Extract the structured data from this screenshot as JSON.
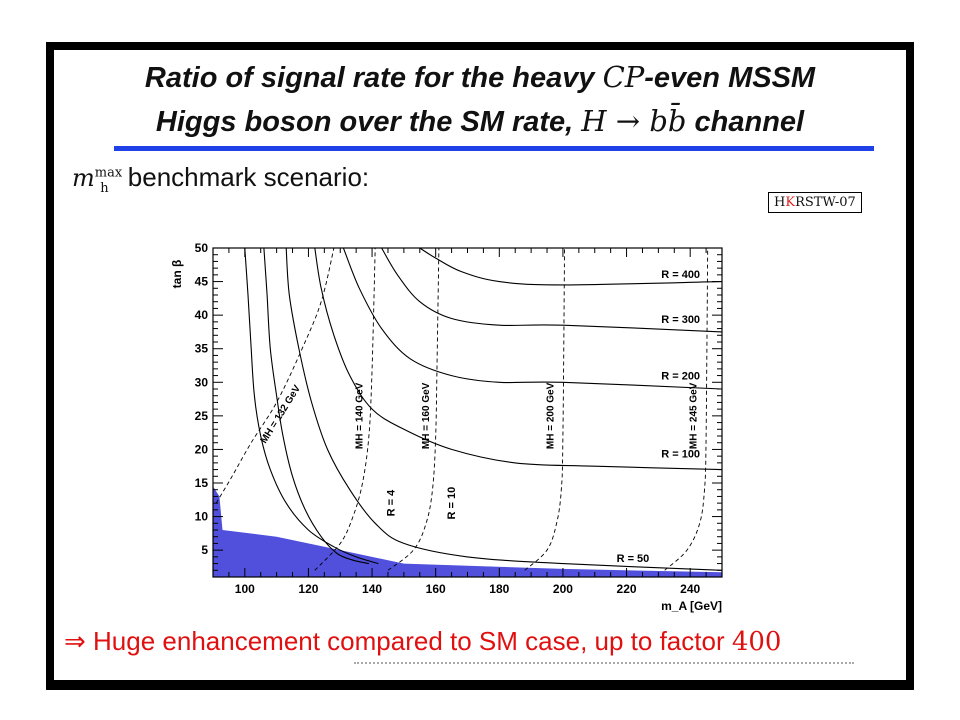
{
  "slide": {
    "title_line1_pre": "Ratio of signal rate for the heavy ",
    "title_cp": "CP",
    "title_line1_post": "-even MSSM",
    "title_line2_pre": "Higgs boson over the SM rate, ",
    "title_math": "H → bb̄",
    "title_line2_post": " channel",
    "subtitle_m": "m",
    "subtitle_sup": "max",
    "subtitle_sub": "h",
    "subtitle_text": " benchmark scenario:",
    "badge_pre": "H",
    "badge_k": "K",
    "badge_post": "RSTW-07",
    "conclusion_arrow": "⇒",
    "conclusion_text": " Huge enhancement compared to SM case, up to factor ",
    "conclusion_num": "400"
  },
  "colors": {
    "title_rule": "#2040e8",
    "excluded_region": "#5050dd",
    "conclusion": "#e01010",
    "badge_k": "#e02020"
  },
  "chart_data": {
    "type": "line",
    "xlabel": "m_A [GeV]",
    "ylabel": "tan β",
    "xlim": [
      90,
      250
    ],
    "ylim": [
      1,
      50
    ],
    "x_ticks": [
      100,
      120,
      140,
      160,
      180,
      200,
      220,
      240
    ],
    "y_ticks": [
      5,
      10,
      15,
      20,
      25,
      30,
      35,
      40,
      45,
      50
    ],
    "grid": false,
    "series": [
      {
        "name": "R = 400",
        "style": "solid",
        "points": [
          [
            155,
            50
          ],
          [
            160,
            48.5
          ],
          [
            168,
            46.5
          ],
          [
            180,
            45
          ],
          [
            200,
            44.5
          ],
          [
            250,
            45
          ]
        ]
      },
      {
        "name": "R = 300",
        "style": "solid",
        "points": [
          [
            143,
            50
          ],
          [
            148,
            46
          ],
          [
            155,
            42
          ],
          [
            165,
            39.5
          ],
          [
            180,
            38.5
          ],
          [
            200,
            38.5
          ],
          [
            250,
            37.5
          ]
        ]
      },
      {
        "name": "R = 200",
        "style": "solid",
        "points": [
          [
            131,
            50
          ],
          [
            136,
            44
          ],
          [
            143,
            38
          ],
          [
            152,
            33.5
          ],
          [
            165,
            31
          ],
          [
            180,
            30
          ],
          [
            200,
            30
          ],
          [
            250,
            29
          ]
        ]
      },
      {
        "name": "R = 100",
        "style": "solid",
        "points": [
          [
            122,
            50
          ],
          [
            124,
            44
          ],
          [
            128,
            37
          ],
          [
            133,
            31
          ],
          [
            140,
            26
          ],
          [
            150,
            23
          ],
          [
            165,
            20
          ],
          [
            185,
            18
          ],
          [
            210,
            17.5
          ],
          [
            250,
            17
          ]
        ]
      },
      {
        "name": "R = 50",
        "style": "solid",
        "points": [
          [
            113,
            50
          ],
          [
            114,
            43
          ],
          [
            117,
            35
          ],
          [
            121,
            27
          ],
          [
            126,
            20
          ],
          [
            133,
            14
          ],
          [
            141,
            9
          ],
          [
            150,
            6
          ],
          [
            170,
            4
          ],
          [
            200,
            3
          ],
          [
            250,
            2
          ]
        ]
      },
      {
        "name": "R = 10",
        "style": "solid",
        "points": [
          [
            106,
            50
          ],
          [
            107,
            43
          ],
          [
            108,
            35
          ],
          [
            110,
            28
          ],
          [
            112,
            22
          ],
          [
            115,
            16
          ],
          [
            119,
            11
          ],
          [
            124,
            7
          ],
          [
            129,
            4.5
          ],
          [
            134,
            3.5
          ],
          [
            139,
            3
          ]
        ]
      },
      {
        "name": "R = 4",
        "style": "solid",
        "points": [
          [
            100,
            50
          ],
          [
            101,
            43
          ],
          [
            102,
            35
          ],
          [
            103,
            28
          ],
          [
            105,
            22
          ],
          [
            108,
            17
          ],
          [
            113,
            12
          ],
          [
            120,
            8
          ],
          [
            128,
            5.5
          ],
          [
            135,
            4
          ],
          [
            142,
            3
          ]
        ]
      },
      {
        "name": "M_H = 132 GeV",
        "style": "dashed",
        "points": [
          [
            91,
            12
          ],
          [
            96,
            16
          ],
          [
            102,
            21
          ],
          [
            110,
            27
          ],
          [
            118,
            35
          ],
          [
            124,
            42
          ],
          [
            128,
            50
          ]
        ]
      },
      {
        "name": "M_H = 140 GeV",
        "style": "dashed",
        "points": [
          [
            122,
            2
          ],
          [
            130,
            6
          ],
          [
            134,
            10
          ],
          [
            137,
            15
          ],
          [
            139,
            22
          ],
          [
            140,
            32
          ],
          [
            141,
            50
          ]
        ]
      },
      {
        "name": "M_H = 160 GeV",
        "style": "dashed",
        "points": [
          [
            145,
            2
          ],
          [
            153,
            5
          ],
          [
            157,
            9
          ],
          [
            159,
            14
          ],
          [
            160,
            22
          ],
          [
            160.5,
            35
          ],
          [
            161,
            50
          ]
        ]
      },
      {
        "name": "M_H = 200 GeV",
        "style": "dashed",
        "points": [
          [
            188,
            2
          ],
          [
            195,
            5
          ],
          [
            198,
            9
          ],
          [
            199.5,
            14
          ],
          [
            200,
            22
          ],
          [
            200.5,
            50
          ]
        ]
      },
      {
        "name": "M_H = 245 GeV",
        "style": "dashed",
        "points": [
          [
            232,
            2
          ],
          [
            239,
            5
          ],
          [
            243,
            9
          ],
          [
            244.5,
            14
          ],
          [
            245,
            22
          ],
          [
            245.5,
            50
          ]
        ]
      }
    ],
    "excluded_region": [
      [
        90,
        1
      ],
      [
        90,
        14.5
      ],
      [
        92,
        13
      ],
      [
        93,
        8
      ],
      [
        110,
        7
      ],
      [
        125,
        5.5
      ],
      [
        150,
        3
      ],
      [
        200,
        2.2
      ],
      [
        250,
        1.7
      ],
      [
        250,
        1
      ]
    ],
    "annotations": [
      {
        "text": "R = 400",
        "x": 237,
        "y": 45.5
      },
      {
        "text": "R = 300",
        "x": 237,
        "y": 38.8
      },
      {
        "text": "R = 200",
        "x": 237,
        "y": 30.4
      },
      {
        "text": "R = 100",
        "x": 237,
        "y": 18.8
      },
      {
        "text": "R = 50",
        "x": 222,
        "y": 3.2
      },
      {
        "text": "R = 10",
        "x": 166,
        "y": 12
      },
      {
        "text": "R = 4",
        "x": 147,
        "y": 12
      },
      {
        "text": "M_H = 132 GeV",
        "x": 112,
        "y": 25
      },
      {
        "text": "M_H = 140 GeV",
        "x": 137,
        "y": 25
      },
      {
        "text": "M_H = 160 GeV",
        "x": 158,
        "y": 25
      },
      {
        "text": "M_H = 200 GeV",
        "x": 197,
        "y": 25
      },
      {
        "text": "M_H = 245 GeV",
        "x": 242,
        "y": 25
      }
    ]
  }
}
